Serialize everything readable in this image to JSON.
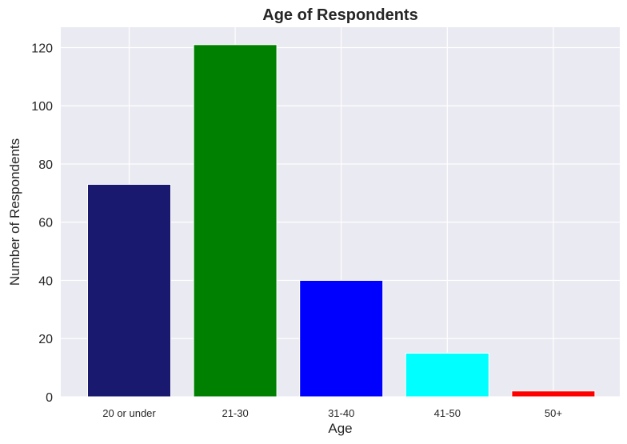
{
  "chart_data": {
    "type": "bar",
    "title": "Age of Respondents",
    "xlabel": "Age",
    "ylabel": "Number of Respondents",
    "categories": [
      "20 or under",
      "21-30",
      "31-40",
      "41-50",
      "50+"
    ],
    "values": [
      73,
      121,
      40,
      15,
      2
    ],
    "colors": [
      "#191970",
      "#008000",
      "#0000ff",
      "#00ffff",
      "#ff0000"
    ],
    "ylim": [
      0,
      127
    ],
    "yticks": [
      0,
      20,
      40,
      60,
      80,
      100,
      120
    ],
    "grid": true,
    "background": "#eaeaf2",
    "gridcolor": "#ffffff"
  }
}
